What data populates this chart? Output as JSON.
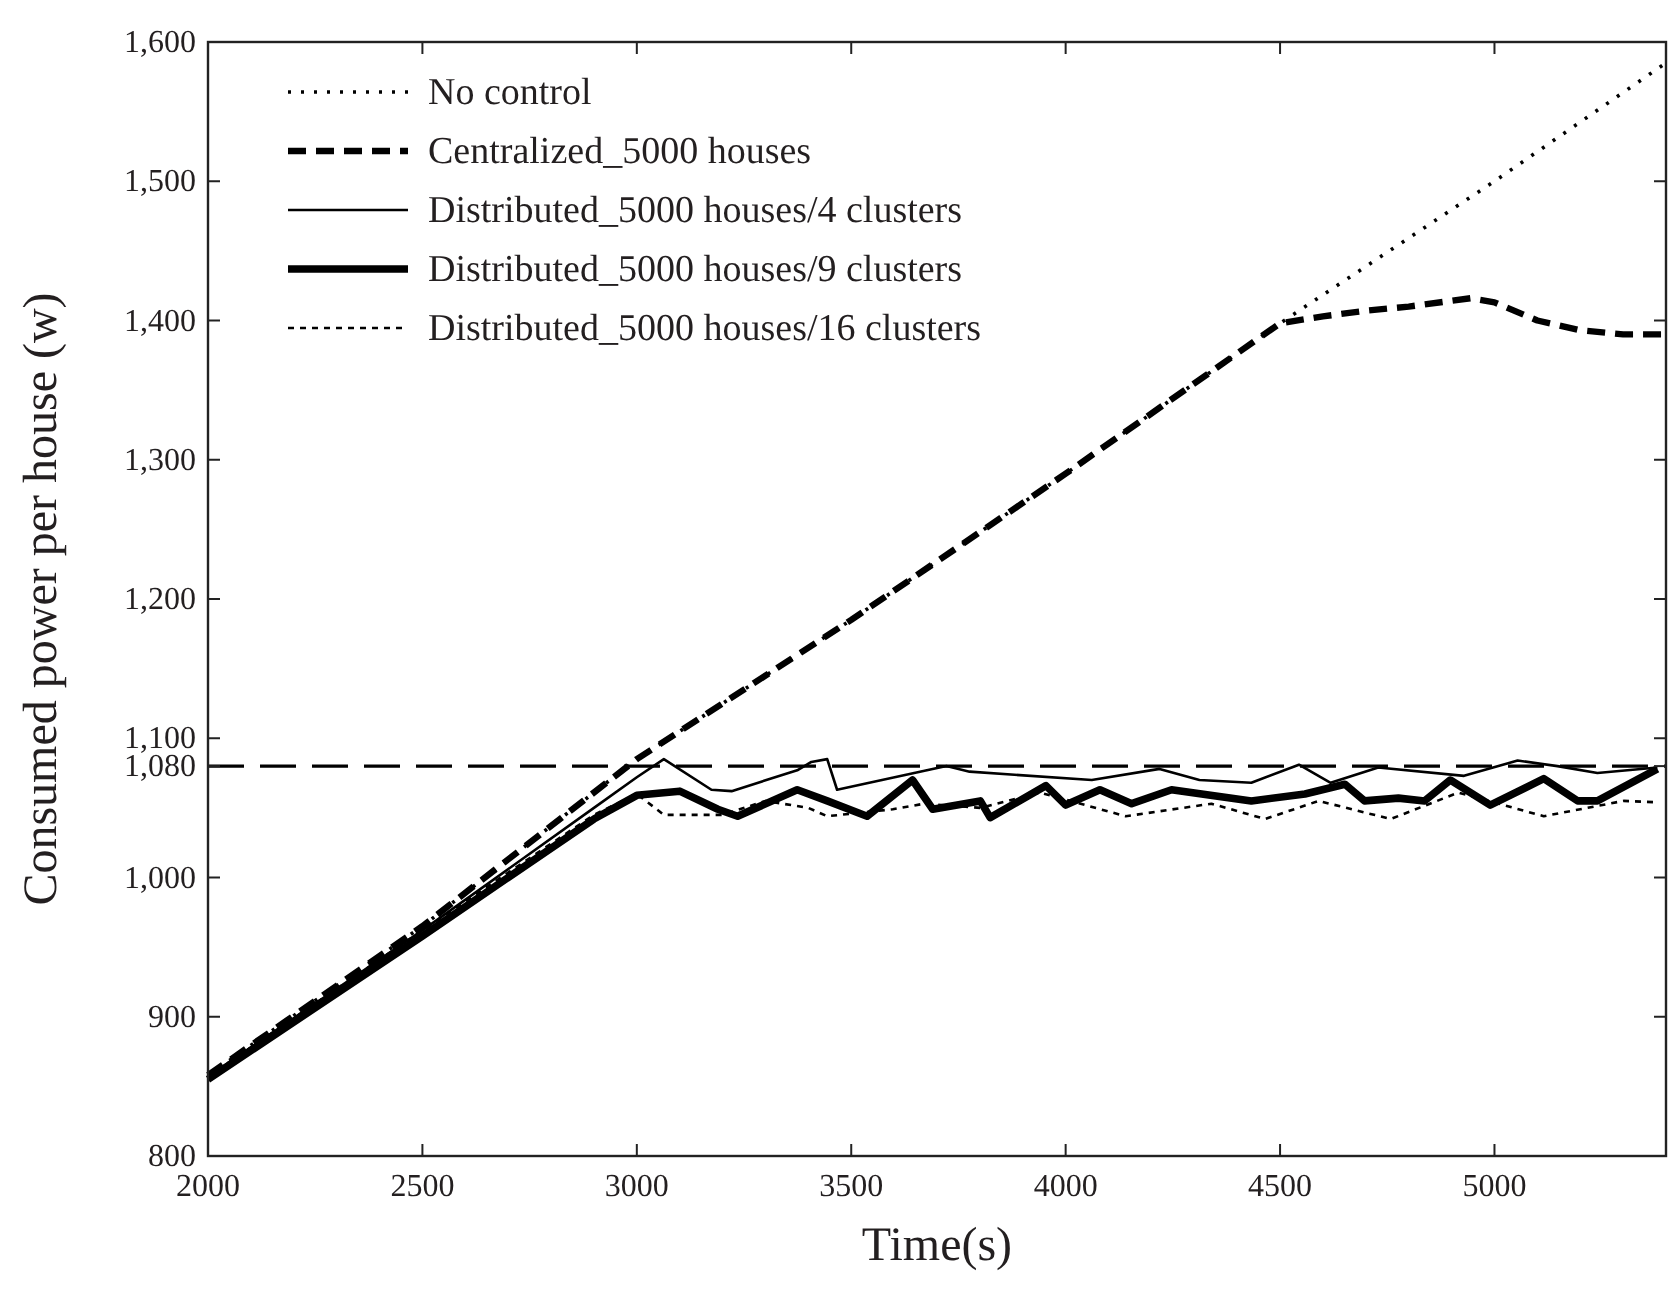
{
  "chart_data": {
    "type": "line",
    "xlabel": "Time(s)",
    "ylabel": "Consumed power per house (w)",
    "xlim": [
      2000,
      5400
    ],
    "ylim": [
      800,
      1600
    ],
    "xticks": [
      2000,
      2500,
      3000,
      3500,
      4000,
      4500,
      5000
    ],
    "yticks": [
      800,
      900,
      {
        "value": 1000,
        "label": "1,000"
      },
      {
        "value": 1080,
        "label": "1,080"
      },
      {
        "value": 1100,
        "label": "1,100"
      },
      {
        "value": 1200,
        "label": "1,200"
      },
      {
        "value": 1300,
        "label": "1,300"
      },
      {
        "value": 1400,
        "label": "1,400"
      },
      {
        "value": 1500,
        "label": "1,500"
      },
      {
        "value": 1600,
        "label": "1,600"
      }
    ],
    "grid": false,
    "legend": "top left",
    "ref_lines": [
      {
        "axis": "y",
        "value": 1080,
        "line_style": "dashed",
        "color": "#000000"
      }
    ],
    "series": [
      {
        "name": "No control",
        "color": "#000000",
        "line_style": "dotted",
        "x": [
          2000,
          2500,
          3000,
          3500,
          4000,
          4500,
          5000,
          5400
        ],
        "values": [
          858,
          965,
          1085,
          1185,
          1290,
          1398,
          1500,
          1585
        ]
      },
      {
        "name": "Centralized_5000 houses",
        "color": "#000000",
        "line_style": "dashed",
        "x": [
          2000,
          2500,
          3000,
          3500,
          4000,
          4500,
          4600,
          4700,
          4800,
          4944,
          5000,
          5100,
          5200,
          5300,
          5400
        ],
        "values": [
          858,
          965,
          1085,
          1185,
          1290,
          1398,
          1403,
          1407,
          1410,
          1416,
          1413,
          1400,
          1393,
          1390,
          1390
        ]
      },
      {
        "name": "Distributed_5000 houses/4 clusters",
        "color": "#000000",
        "line_style": "solid",
        "x": [
          2000,
          2500,
          2900,
          3000,
          3063,
          3174,
          3221,
          3374,
          3407,
          3444,
          3467,
          3722,
          3776,
          4061,
          4219,
          4312,
          4433,
          4544,
          4618,
          4729,
          4929,
          5054,
          5147,
          5240,
          5380
        ],
        "values": [
          857,
          962,
          1050,
          1072,
          1085,
          1063,
          1062,
          1077,
          1083,
          1085,
          1063,
          1080,
          1076,
          1070,
          1078,
          1070,
          1068,
          1081,
          1068,
          1079,
          1073,
          1084,
          1080,
          1075,
          1079
        ]
      },
      {
        "name": "Distributed_5000 houses/9 clusters",
        "color": "#000000",
        "line_style": "solid",
        "x": [
          2000,
          2500,
          2900,
          3000,
          3100,
          3189,
          3235,
          3374,
          3444,
          3537,
          3643,
          3690,
          3801,
          3824,
          3954,
          4000,
          4080,
          4154,
          4247,
          4433,
          4558,
          4651,
          4697,
          4776,
          4837,
          4897,
          4990,
          5115,
          5194,
          5240,
          5380
        ],
        "values": [
          855,
          958,
          1042,
          1059,
          1062,
          1049,
          1044,
          1063,
          1055,
          1044,
          1070,
          1049,
          1055,
          1043,
          1066,
          1052,
          1063,
          1053,
          1063,
          1055,
          1060,
          1067,
          1055,
          1057,
          1055,
          1070,
          1052,
          1071,
          1055,
          1055,
          1078
        ]
      },
      {
        "name": "Distributed_5000 houses/16 clusters",
        "color": "#000000",
        "line_style": "dashed",
        "x": [
          2000,
          2500,
          2900,
          3000,
          3063,
          3200,
          3300,
          3400,
          3444,
          3597,
          3670,
          3801,
          3940,
          4140,
          4340,
          4465,
          4590,
          4758,
          4916,
          5115,
          5301,
          5380
        ],
        "values": [
          857,
          962,
          1045,
          1060,
          1045,
          1045,
          1055,
          1050,
          1044,
          1049,
          1053,
          1050,
          1061,
          1044,
          1053,
          1042,
          1055,
          1042,
          1061,
          1044,
          1055,
          1054
        ]
      }
    ]
  }
}
